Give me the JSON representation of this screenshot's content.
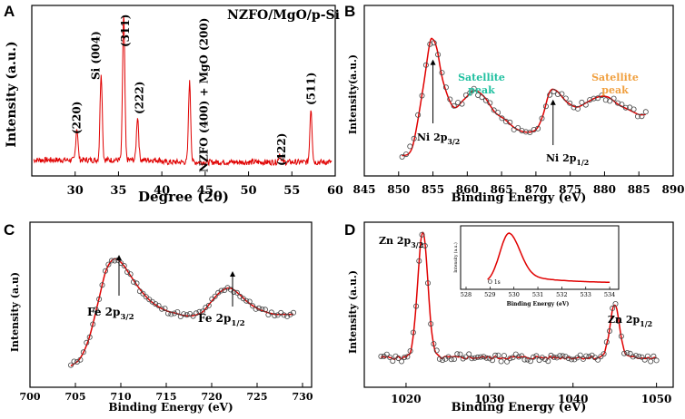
{
  "panel_labels": [
    "A",
    "B",
    "C",
    "D"
  ],
  "chart_data": [
    {
      "panel": "A",
      "type": "line",
      "title": "NZFO/MgO/p-Si",
      "xlabel": "Degree (2θ)",
      "ylabel": "Intensity (a.u.)",
      "xlim": [
        25,
        60
      ],
      "ylim": [
        0,
        100
      ],
      "xticks": [
        "30",
        "35",
        "40",
        "45",
        "50",
        "55",
        "60"
      ],
      "xtick_values": [
        30,
        35,
        40,
        45,
        50,
        55,
        60
      ],
      "color": "#e00000",
      "peaks": [
        {
          "x": 30.2,
          "height": 22
        },
        {
          "x": 33.0,
          "height": 60
        },
        {
          "x": 35.6,
          "height": 100
        },
        {
          "x": 37.2,
          "height": 30
        },
        {
          "x": 43.2,
          "height": 55
        },
        {
          "x": 53.6,
          "height": 6
        },
        {
          "x": 57.2,
          "height": 37
        }
      ],
      "annotations": [
        {
          "label": "(220)",
          "x": 30.2
        },
        {
          "label": "Si (004)",
          "x": 33.0
        },
        {
          "label": "(311)",
          "x": 35.6
        },
        {
          "label": "(222)",
          "x": 37.2
        },
        {
          "label": "NZFO (400) + MgO (200)",
          "x": 43.2
        },
        {
          "label": "(422)",
          "x": 53.6
        },
        {
          "label": "(511)",
          "x": 57.2
        }
      ]
    },
    {
      "panel": "B",
      "type": "scatter",
      "xlabel": "Binding Energy (eV)",
      "ylabel": "Intensity(a.u.)",
      "xlim": [
        845,
        890
      ],
      "ylim": [
        0,
        100
      ],
      "xticks": [
        "845",
        "850",
        "855",
        "860",
        "865",
        "870",
        "875",
        "880",
        "885",
        "890"
      ],
      "xtick_values": [
        845,
        850,
        855,
        860,
        865,
        870,
        875,
        880,
        885,
        890
      ],
      "x": [
        850.5,
        852,
        853.5,
        854.5,
        855,
        855.6,
        856.5,
        858,
        859.5,
        861,
        862.5,
        864,
        865.5,
        867,
        868.5,
        870,
        871,
        872,
        873,
        874.5,
        876,
        877.5,
        879,
        880.5,
        882,
        883.5,
        885,
        886
      ],
      "y": [
        3,
        10,
        55,
        92,
        96,
        88,
        62,
        42,
        48,
        55,
        50,
        38,
        32,
        25,
        22,
        24,
        35,
        54,
        55,
        46,
        42,
        46,
        50,
        50,
        44,
        40,
        36,
        36
      ],
      "annotations": [
        {
          "label": "Ni 2p3/2",
          "main": "Ni 2p",
          "sub": "3/2",
          "x": 855
        },
        {
          "label": "Satellite peak",
          "line1": "Satellite",
          "line2": "peak",
          "x": 861,
          "color": "#20c0a0"
        },
        {
          "label": "Ni 2p1/2",
          "main": "Ni 2p",
          "sub": "1/2",
          "x": 872.5
        },
        {
          "label": "Satellite peak",
          "line1": "Satellite",
          "line2": "peak",
          "x": 879.5,
          "color": "#f0a040"
        }
      ]
    },
    {
      "panel": "C",
      "type": "scatter",
      "xlabel": "Binding Energy (eV)",
      "ylabel": "Intensity (a.u)",
      "xlim": [
        700,
        731
      ],
      "ylim": [
        0,
        100
      ],
      "xticks": [
        "700",
        "705",
        "710",
        "715",
        "720",
        "725",
        "730"
      ],
      "xtick_values": [
        700,
        705,
        710,
        715,
        720,
        725,
        730
      ],
      "x": [
        704.5,
        705.5,
        706.5,
        707.5,
        708.3,
        709,
        709.6,
        710.3,
        711,
        712,
        713,
        714,
        715,
        716,
        717,
        718,
        719,
        720,
        721,
        722,
        723,
        724,
        725,
        726,
        727,
        728,
        729
      ],
      "y": [
        2,
        8,
        25,
        55,
        80,
        90,
        91,
        86,
        78,
        67,
        58,
        52,
        48,
        46,
        44,
        44,
        47,
        56,
        64,
        67,
        62,
        55,
        50,
        47,
        45,
        45,
        45
      ],
      "annotations": [
        {
          "label": "Fe 2p3/2",
          "main": "Fe 2p",
          "sub": "3/2",
          "x": 709.8
        },
        {
          "label": "Fe 2p1/2",
          "main": "Fe 2p",
          "sub": "1/2",
          "x": 722.3
        }
      ]
    },
    {
      "panel": "D",
      "type": "scatter",
      "xlabel": "Binding Energy (eV)",
      "ylabel": "Intensity (a.u.)",
      "xlim": [
        1015,
        1052
      ],
      "ylim": [
        0,
        100
      ],
      "xticks": [
        "1020",
        "1030",
        "1040",
        "1050"
      ],
      "xtick_values": [
        1020,
        1030,
        1040,
        1050
      ],
      "peaks": [
        {
          "x": 1022,
          "height": 100,
          "width": 0.85
        },
        {
          "x": 1045,
          "height": 42,
          "width": 0.8
        }
      ],
      "baseline": 7,
      "annotations": [
        {
          "label": "Zn 2p3/2",
          "main": "Zn 2p",
          "sub": "3/2",
          "x": 1022
        },
        {
          "label": "Zn 2p1/2",
          "main": "Zn 2p",
          "sub": "1/2",
          "x": 1045
        }
      ],
      "inset": {
        "type": "line",
        "xlabel": "Binding Energy (eV)",
        "ylabel": "Intensity (a.u.)",
        "xlim": [
          528,
          534.3
        ],
        "ylim": [
          0,
          100
        ],
        "xticks": [
          "528",
          "529",
          "530",
          "531",
          "532",
          "533",
          "534"
        ],
        "xtick_values": [
          528,
          529,
          530,
          531,
          532,
          533,
          534
        ],
        "peak_x": 529.8,
        "label": "O 1s",
        "color": "#e00000"
      }
    }
  ]
}
